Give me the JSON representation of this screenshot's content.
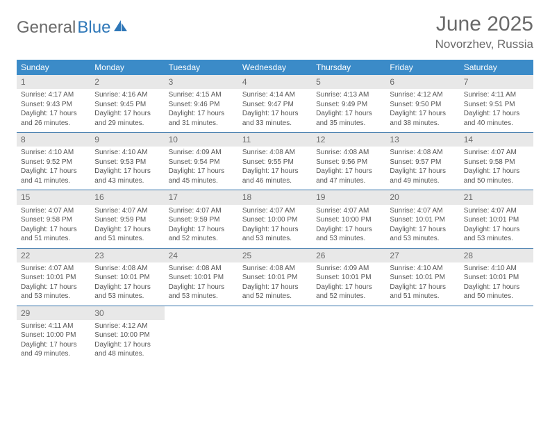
{
  "logo": {
    "text1": "General",
    "text2": "Blue"
  },
  "title": "June 2025",
  "location": "Novorzhev, Russia",
  "colors": {
    "header_bg": "#3b8bc8",
    "header_text": "#ffffff",
    "daynum_bg": "#e8e8e8",
    "border": "#2e6fa8",
    "logo_blue": "#2e77b8",
    "text": "#555555"
  },
  "weekdays": [
    "Sunday",
    "Monday",
    "Tuesday",
    "Wednesday",
    "Thursday",
    "Friday",
    "Saturday"
  ],
  "weeks": [
    [
      {
        "n": "1",
        "sr": "4:17 AM",
        "ss": "9:43 PM",
        "dh": "17",
        "dm": "26"
      },
      {
        "n": "2",
        "sr": "4:16 AM",
        "ss": "9:45 PM",
        "dh": "17",
        "dm": "29"
      },
      {
        "n": "3",
        "sr": "4:15 AM",
        "ss": "9:46 PM",
        "dh": "17",
        "dm": "31"
      },
      {
        "n": "4",
        "sr": "4:14 AM",
        "ss": "9:47 PM",
        "dh": "17",
        "dm": "33"
      },
      {
        "n": "5",
        "sr": "4:13 AM",
        "ss": "9:49 PM",
        "dh": "17",
        "dm": "35"
      },
      {
        "n": "6",
        "sr": "4:12 AM",
        "ss": "9:50 PM",
        "dh": "17",
        "dm": "38"
      },
      {
        "n": "7",
        "sr": "4:11 AM",
        "ss": "9:51 PM",
        "dh": "17",
        "dm": "40"
      }
    ],
    [
      {
        "n": "8",
        "sr": "4:10 AM",
        "ss": "9:52 PM",
        "dh": "17",
        "dm": "41"
      },
      {
        "n": "9",
        "sr": "4:10 AM",
        "ss": "9:53 PM",
        "dh": "17",
        "dm": "43"
      },
      {
        "n": "10",
        "sr": "4:09 AM",
        "ss": "9:54 PM",
        "dh": "17",
        "dm": "45"
      },
      {
        "n": "11",
        "sr": "4:08 AM",
        "ss": "9:55 PM",
        "dh": "17",
        "dm": "46"
      },
      {
        "n": "12",
        "sr": "4:08 AM",
        "ss": "9:56 PM",
        "dh": "17",
        "dm": "47"
      },
      {
        "n": "13",
        "sr": "4:08 AM",
        "ss": "9:57 PM",
        "dh": "17",
        "dm": "49"
      },
      {
        "n": "14",
        "sr": "4:07 AM",
        "ss": "9:58 PM",
        "dh": "17",
        "dm": "50"
      }
    ],
    [
      {
        "n": "15",
        "sr": "4:07 AM",
        "ss": "9:58 PM",
        "dh": "17",
        "dm": "51"
      },
      {
        "n": "16",
        "sr": "4:07 AM",
        "ss": "9:59 PM",
        "dh": "17",
        "dm": "51"
      },
      {
        "n": "17",
        "sr": "4:07 AM",
        "ss": "9:59 PM",
        "dh": "17",
        "dm": "52"
      },
      {
        "n": "18",
        "sr": "4:07 AM",
        "ss": "10:00 PM",
        "dh": "17",
        "dm": "53"
      },
      {
        "n": "19",
        "sr": "4:07 AM",
        "ss": "10:00 PM",
        "dh": "17",
        "dm": "53"
      },
      {
        "n": "20",
        "sr": "4:07 AM",
        "ss": "10:01 PM",
        "dh": "17",
        "dm": "53"
      },
      {
        "n": "21",
        "sr": "4:07 AM",
        "ss": "10:01 PM",
        "dh": "17",
        "dm": "53"
      }
    ],
    [
      {
        "n": "22",
        "sr": "4:07 AM",
        "ss": "10:01 PM",
        "dh": "17",
        "dm": "53"
      },
      {
        "n": "23",
        "sr": "4:08 AM",
        "ss": "10:01 PM",
        "dh": "17",
        "dm": "53"
      },
      {
        "n": "24",
        "sr": "4:08 AM",
        "ss": "10:01 PM",
        "dh": "17",
        "dm": "53"
      },
      {
        "n": "25",
        "sr": "4:08 AM",
        "ss": "10:01 PM",
        "dh": "17",
        "dm": "52"
      },
      {
        "n": "26",
        "sr": "4:09 AM",
        "ss": "10:01 PM",
        "dh": "17",
        "dm": "52"
      },
      {
        "n": "27",
        "sr": "4:10 AM",
        "ss": "10:01 PM",
        "dh": "17",
        "dm": "51"
      },
      {
        "n": "28",
        "sr": "4:10 AM",
        "ss": "10:01 PM",
        "dh": "17",
        "dm": "50"
      }
    ],
    [
      {
        "n": "29",
        "sr": "4:11 AM",
        "ss": "10:00 PM",
        "dh": "17",
        "dm": "49"
      },
      {
        "n": "30",
        "sr": "4:12 AM",
        "ss": "10:00 PM",
        "dh": "17",
        "dm": "48"
      },
      null,
      null,
      null,
      null,
      null
    ]
  ],
  "labels": {
    "sunrise": "Sunrise:",
    "sunset": "Sunset:",
    "daylight": "Daylight:",
    "hours": "hours",
    "and": "and",
    "minutes": "minutes."
  }
}
